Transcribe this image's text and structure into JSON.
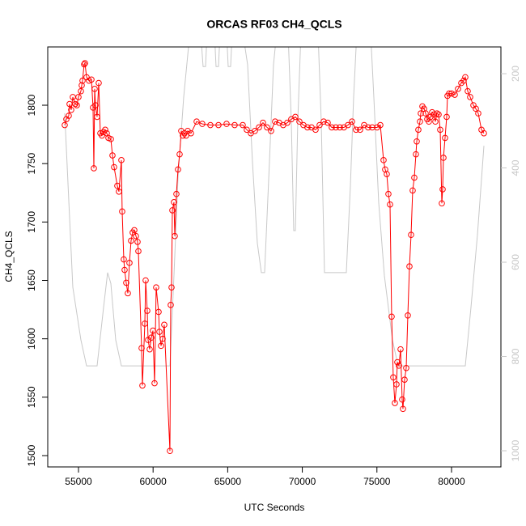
{
  "chart_data": {
    "type": "line",
    "title": "ORCAS RF03 CH4_QCLS",
    "x_label": "UTC Seconds",
    "y_label": "CH4_QCLS",
    "xlim": [
      52940,
      83310
    ],
    "ylim": [
      1490.3,
      1849.9
    ],
    "y2lim": [
      1034.3,
      143.3
    ],
    "xticks": [
      55000,
      60000,
      65000,
      70000,
      75000,
      80000
    ],
    "yticks": [
      1500,
      1550,
      1600,
      1650,
      1700,
      1750,
      1800
    ],
    "y2ticks": [
      200,
      400,
      600,
      800,
      1000
    ],
    "grid": false,
    "series": [
      {
        "color": "#ff0000",
        "markers": true,
        "x": [
          54078,
          54187,
          54349,
          54403,
          54512,
          54620,
          54783,
          54892,
          55000,
          55163,
          55217,
          55271,
          55380,
          55434,
          55542,
          55705,
          55868,
          55976,
          56030,
          56085,
          56139,
          56247,
          56356,
          56464,
          56573,
          56681,
          56790,
          56898,
          57006,
          57169,
          57278,
          57386,
          57603,
          57712,
          57874,
          57928,
          58037,
          58091,
          58199,
          58308,
          58416,
          58525,
          58633,
          58742,
          58850,
          58959,
          59013,
          59230,
          59284,
          59447,
          59501,
          59610,
          59664,
          59772,
          59881,
          59989,
          60098,
          60206,
          60369,
          60423,
          60532,
          60640,
          60749,
          61128,
          61182,
          61237,
          61291,
          61399,
          61454,
          61562,
          61670,
          61779,
          61887,
          61996,
          62104,
          62213,
          62321,
          62538,
          62918,
          63297,
          63839,
          64382,
          64924,
          65466,
          66009,
          66280,
          66551,
          66822,
          67093,
          67364,
          67636,
          67907,
          68178,
          68449,
          68720,
          68991,
          69262,
          69534,
          69805,
          70076,
          70347,
          70618,
          70889,
          71160,
          71432,
          71703,
          71974,
          72245,
          72516,
          72787,
          73059,
          73330,
          73601,
          73872,
          74143,
          74414,
          74685,
          75011,
          75228,
          75445,
          75553,
          75662,
          75770,
          75879,
          75987,
          76096,
          76204,
          76313,
          76367,
          76475,
          76584,
          76692,
          76747,
          76855,
          76964,
          77072,
          77181,
          77289,
          77397,
          77506,
          77614,
          77669,
          77777,
          77886,
          77940,
          78049,
          78157,
          78266,
          78374,
          78482,
          78591,
          78699,
          78808,
          78916,
          79025,
          79133,
          79242,
          79350,
          79405,
          79459,
          79567,
          79676,
          79730,
          79839,
          80001,
          80218,
          80435,
          80652,
          80815,
          80923,
          81086,
          81249,
          81466,
          81629,
          81791,
          82008,
          82171
        ],
        "values": [
          1783,
          1788,
          1791,
          1801,
          1796,
          1807,
          1801,
          1800,
          1807,
          1812,
          1817,
          1821,
          1835,
          1836,
          1824,
          1821,
          1822,
          1798,
          1746,
          1814,
          1800,
          1790,
          1819,
          1776,
          1774,
          1777,
          1779,
          1776,
          1772,
          1771,
          1757,
          1747,
          1731,
          1726,
          1753,
          1709,
          1668,
          1659,
          1648,
          1639,
          1665,
          1684,
          1691,
          1693,
          1688,
          1683,
          1675,
          1592,
          1560,
          1613,
          1650,
          1624,
          1599,
          1591,
          1601,
          1607,
          1562,
          1644,
          1623,
          1606,
          1594,
          1600,
          1612,
          1504,
          1629,
          1644,
          1710,
          1717,
          1688,
          1724,
          1745,
          1758,
          1778,
          1774,
          1776,
          1774,
          1778,
          1776,
          1786,
          1784,
          1783,
          1783,
          1784,
          1783,
          1783,
          1779,
          1776,
          1778,
          1781,
          1785,
          1781,
          1778,
          1786,
          1785,
          1783,
          1785,
          1788,
          1790,
          1786,
          1783,
          1781,
          1781,
          1779,
          1783,
          1786,
          1785,
          1781,
          1781,
          1781,
          1781,
          1783,
          1786,
          1779,
          1779,
          1783,
          1781,
          1781,
          1781,
          1783,
          1753,
          1745,
          1741,
          1724,
          1715,
          1619,
          1567,
          1545,
          1561,
          1580,
          1577,
          1591,
          1548,
          1540,
          1565,
          1575,
          1620,
          1662,
          1689,
          1727,
          1738,
          1758,
          1769,
          1779,
          1786,
          1793,
          1799,
          1797,
          1793,
          1788,
          1786,
          1790,
          1794,
          1792,
          1786,
          1793,
          1792,
          1779,
          1716,
          1728,
          1755,
          1772,
          1790,
          1808,
          1810,
          1810,
          1809,
          1814,
          1819,
          1821,
          1824,
          1812,
          1807,
          1800,
          1797,
          1793,
          1779,
          1776
        ]
      },
      {
        "color": "#c8c8c8",
        "markers": false,
        "axis": "y2",
        "x": [
          54078,
          54620,
          55163,
          55542,
          56247,
          56681,
          56952,
          57169,
          57495,
          57874,
          61128,
          61399,
          61670,
          62050,
          62375,
          62646,
          63188,
          63351,
          63514,
          63622,
          64110,
          64219,
          64382,
          64490,
          64924,
          65033,
          65195,
          65304,
          66009,
          66334,
          66659,
          66985,
          67256,
          67473,
          67798,
          68069,
          68286,
          69045,
          69262,
          69425,
          69534,
          69696,
          69913,
          71052,
          71269,
          71486,
          72950,
          73222,
          73439,
          73655,
          74577,
          74794,
          75119,
          75499,
          76041,
          76421,
          80923,
          81303,
          81737,
          82171
        ],
        "values": [
          284,
          653,
          765,
          820,
          820,
          696,
          622,
          645,
          765,
          820,
          820,
          628,
          421,
          250,
          143,
          112,
          112,
          185,
          185,
          112,
          112,
          185,
          185,
          112,
          112,
          185,
          185,
          112,
          112,
          181,
          387,
          559,
          622,
          622,
          387,
          181,
          112,
          112,
          301,
          533,
          533,
          301,
          112,
          112,
          301,
          622,
          622,
          439,
          250,
          112,
          112,
          250,
          473,
          628,
          765,
          820,
          820,
          696,
          542,
          353
        ]
      }
    ]
  }
}
